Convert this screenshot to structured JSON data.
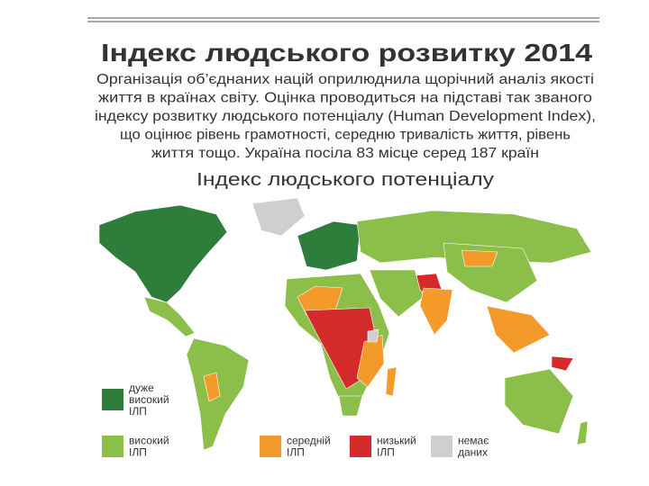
{
  "header": {
    "title": "Індекс людського розвитку 2014",
    "description": [
      "Організація об’єднаних націй оприлюднила щорічний аналіз якості",
      "життя в країнах світу. Оцінка проводиться на підставі так званого",
      "індексу розвитку людського потенціалу (Human Development Index),",
      "що оцінює рівень грамотності, середню тривалість життя, рівень",
      "життя тощо. Україна посіла 83 місце серед 187 країн"
    ]
  },
  "map": {
    "title": "Індекс людського потенціалу"
  },
  "legend": {
    "items": [
      {
        "lines": [
          "дуже",
          "високий",
          "ІЛП"
        ],
        "color": "#2f7d3b"
      },
      {
        "lines": [
          "високий",
          "ІЛП"
        ],
        "color": "#8cbf4a"
      },
      {
        "lines": [
          "середній",
          "ІЛП"
        ],
        "color": "#f39a2b"
      },
      {
        "lines": [
          "низький",
          "ІЛП"
        ],
        "color": "#d42a2a"
      },
      {
        "lines": [
          "немає",
          "даних"
        ],
        "color": "#cfcfcf"
      }
    ]
  }
}
